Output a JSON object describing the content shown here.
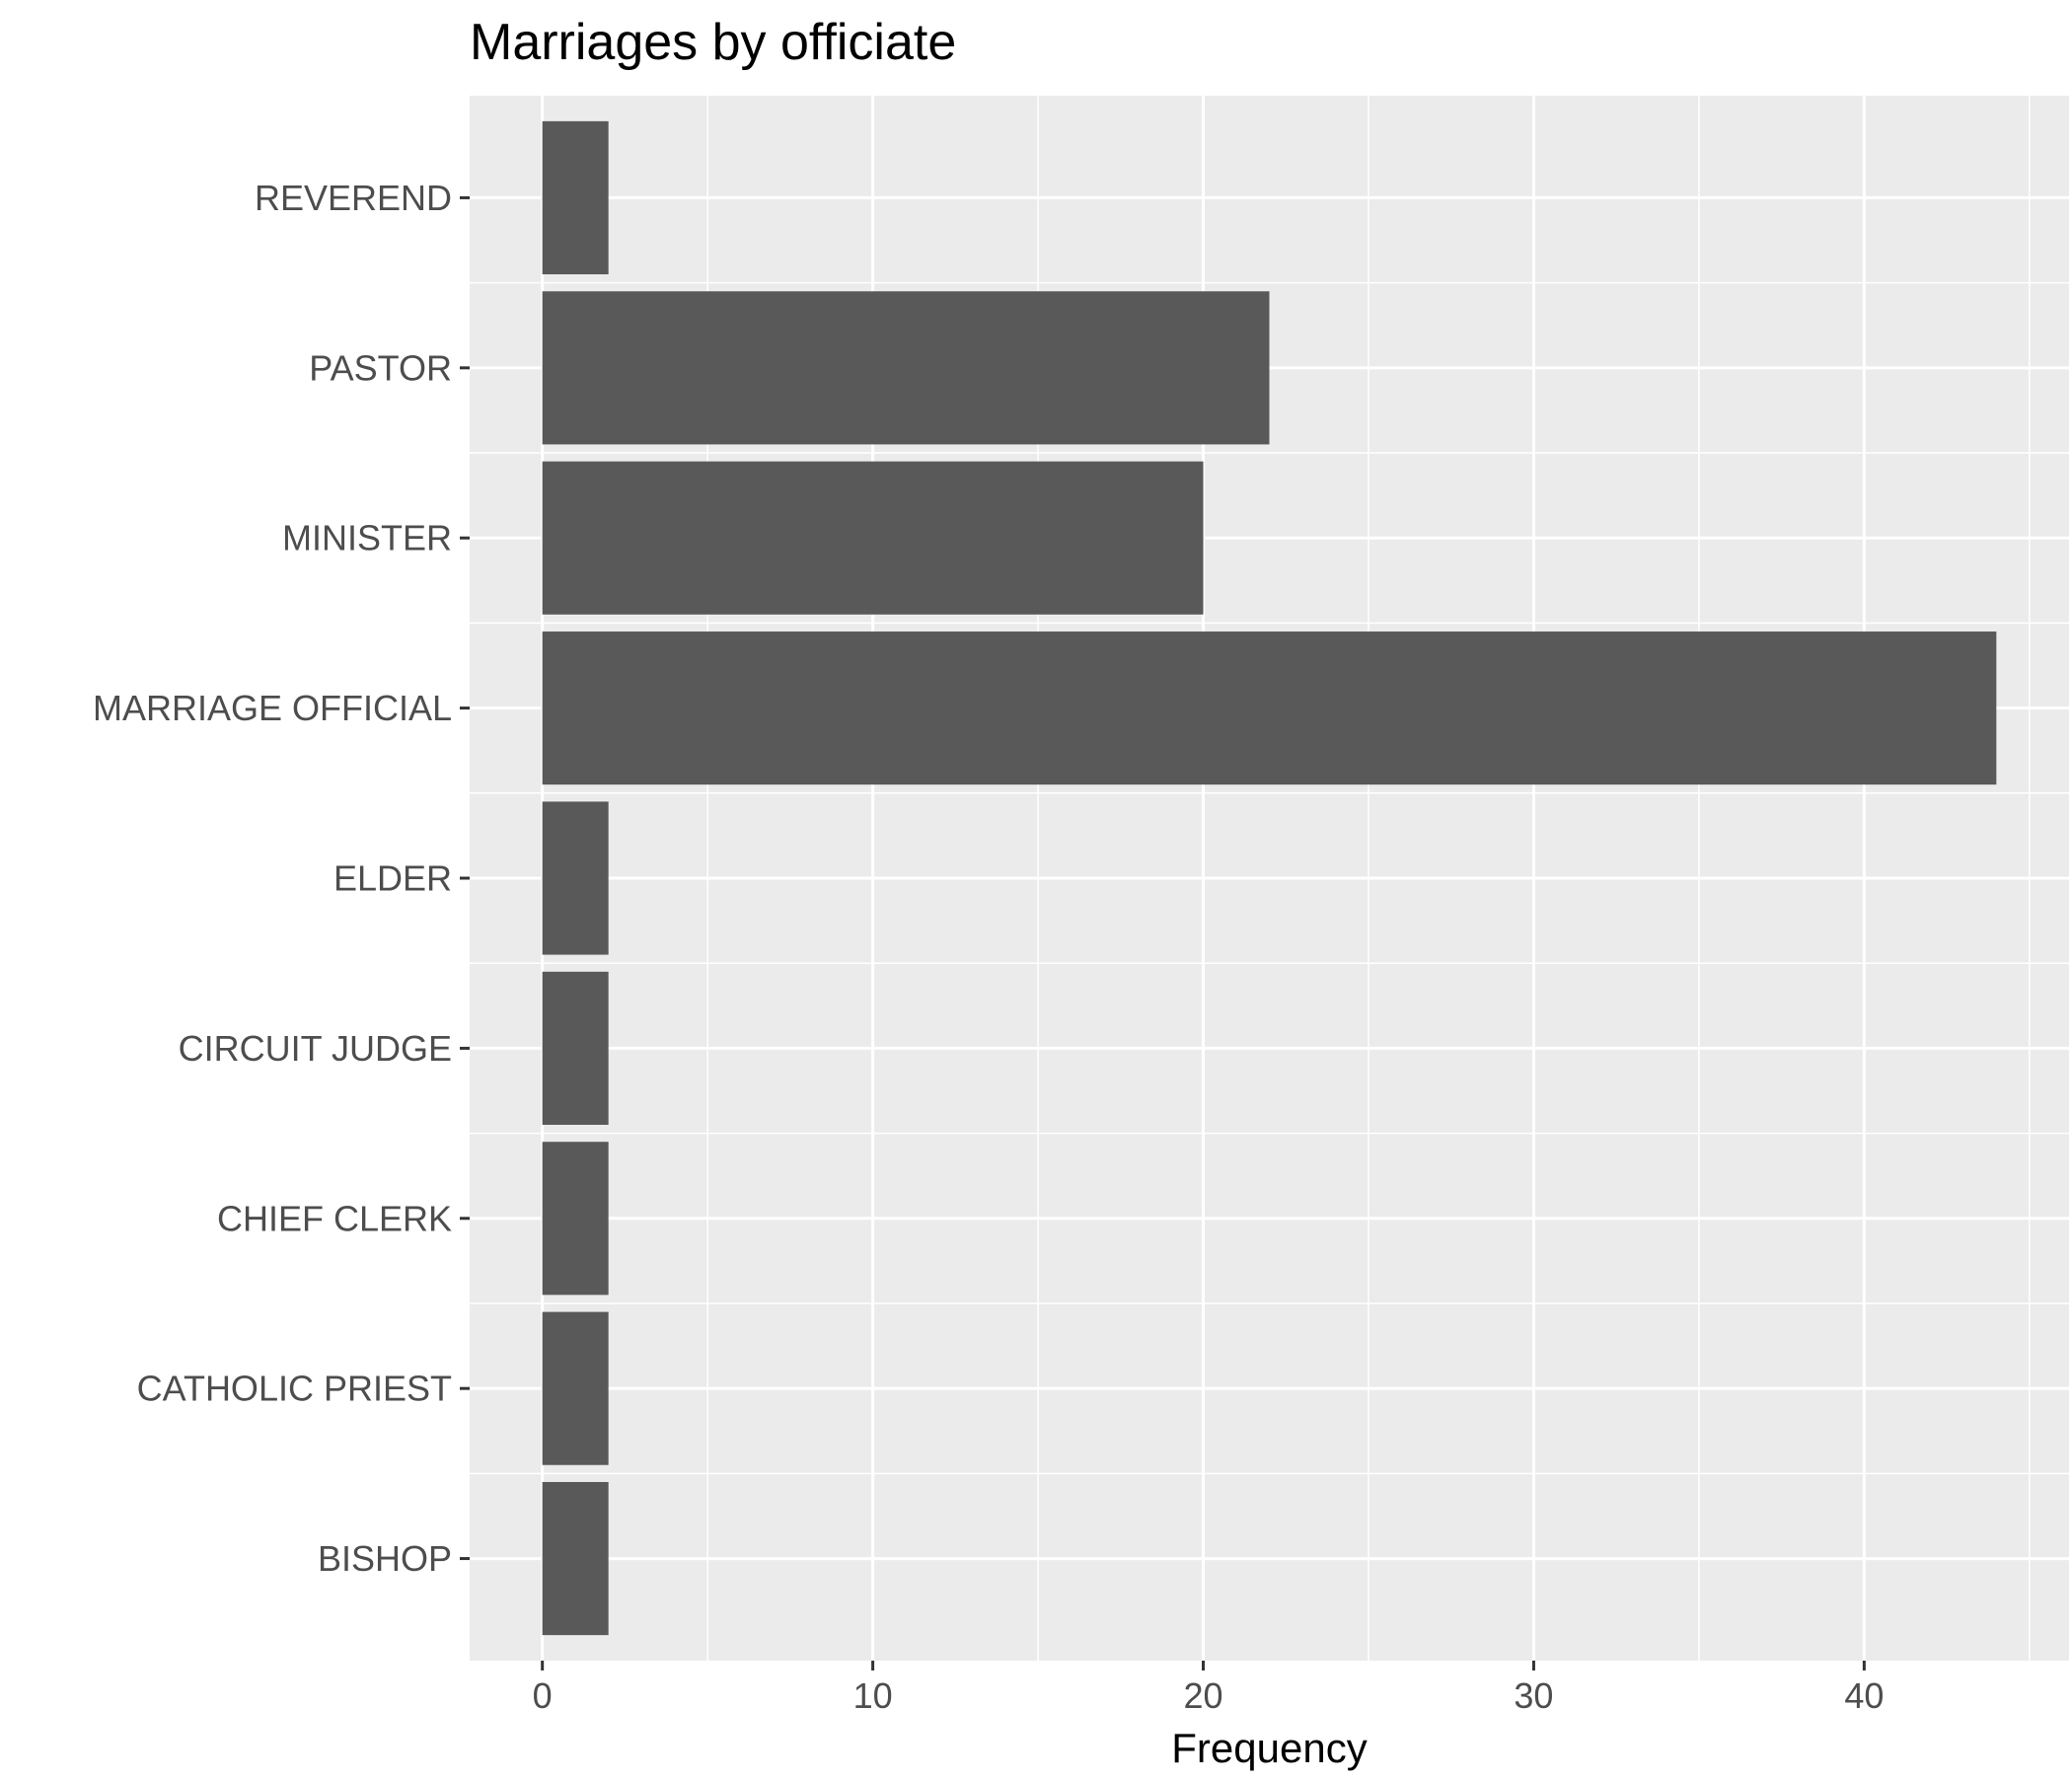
{
  "chart_data": {
    "type": "bar",
    "orientation": "horizontal",
    "title": "Marriages by officiate",
    "xlabel": "Frequency",
    "ylabel": "",
    "categories": [
      "BISHOP",
      "CATHOLIC PRIEST",
      "CHIEF CLERK",
      "CIRCUIT JUDGE",
      "ELDER",
      "MARRIAGE OFFICIAL",
      "MINISTER",
      "PASTOR",
      "REVEREND"
    ],
    "values": [
      2,
      2,
      2,
      2,
      2,
      44,
      20,
      22,
      2
    ],
    "xlim": [
      -2.2,
      46.2
    ],
    "xticks": [
      0,
      10,
      20,
      30,
      40
    ],
    "grid": true,
    "legend": "none",
    "colors": {
      "bar": "#595959",
      "panel": "#ebebeb",
      "grid": "#ffffff",
      "tick_text": "#4d4d4d",
      "tick_mark": "#333333"
    }
  }
}
